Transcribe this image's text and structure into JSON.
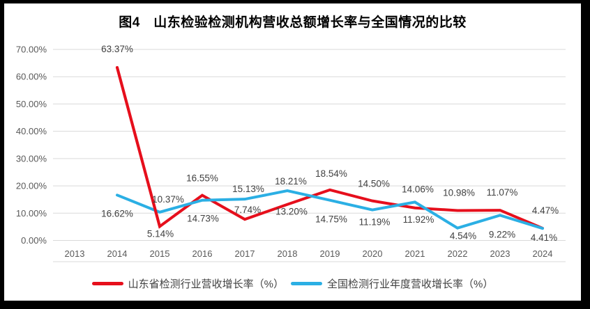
{
  "colors": {
    "border": "#000000",
    "background": "#ffffff",
    "gridline": "#d9d9d9",
    "axis_line": "#d9d9d9",
    "axis_text": "#595959",
    "label_text": "#404040",
    "title_text": "#000000",
    "legend_text": "#404040"
  },
  "chart_data": {
    "type": "line",
    "title": "图4　山东检验检测机构营收总额增长率与全国情况的比较",
    "categories": [
      "2013",
      "2014",
      "2015",
      "2016",
      "2017",
      "2018",
      "2019",
      "2020",
      "2021",
      "2022",
      "2023",
      "2024"
    ],
    "series": [
      {
        "id": "shandong",
        "name": "山东省检测行业营收增长率（%）",
        "color": "#e60f1c",
        "values": [
          null,
          63.37,
          5.14,
          16.55,
          7.74,
          13.2,
          18.54,
          14.5,
          11.92,
          10.98,
          11.07,
          4.47
        ],
        "label_dx": [
          0,
          0,
          1,
          0,
          4,
          6,
          2,
          2,
          5,
          2,
          3,
          4
        ],
        "label_dy": [
          0,
          -22,
          15,
          -20,
          -9,
          15,
          -19,
          -20,
          21,
          -21,
          -21,
          -21
        ]
      },
      {
        "id": "national",
        "name": "全国检测行业年度营收增长率（%）",
        "color": "#2bafe4",
        "values": [
          null,
          16.62,
          10.37,
          14.73,
          15.13,
          18.21,
          14.75,
          11.19,
          14.06,
          4.54,
          9.22,
          4.41
        ],
        "label_dx": [
          0,
          0,
          12,
          1,
          5,
          5,
          2,
          3,
          4,
          8,
          3,
          2
        ],
        "label_dy": [
          0,
          31,
          -14,
          31,
          -10,
          -9,
          32,
          22,
          -14,
          16,
          32,
          18
        ]
      }
    ],
    "xlabel": "",
    "ylabel": "",
    "ylim": [
      0,
      70
    ],
    "ytick_step": 10,
    "ytick_labels": [
      "70.00%",
      "60.00%",
      "50.00%",
      "40.00%",
      "30.00%",
      "20.00%",
      "10.00%",
      "0.00%"
    ],
    "grid": true,
    "data_labels": true,
    "label_format": "0.00%",
    "legend_position": "bottom"
  }
}
